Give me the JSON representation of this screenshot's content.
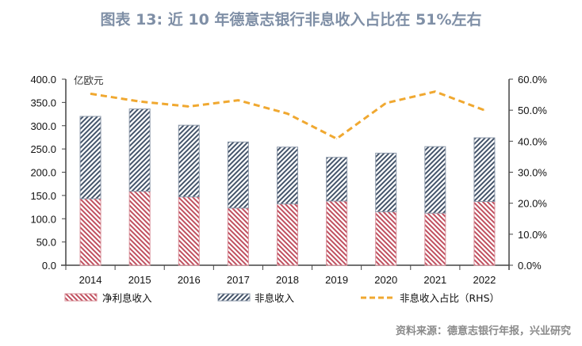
{
  "title": "图表 13: 近 10 年德意志银行非息收入占比在 51%左右",
  "source": "资料来源：德意志银行年报，兴业研究",
  "chart_data": {
    "type": "bar",
    "stacked": true,
    "title": "图表 13: 近 10 年德意志银行非息收入占比在 51%左右",
    "categories": [
      "2014",
      "2015",
      "2016",
      "2017",
      "2018",
      "2019",
      "2020",
      "2021",
      "2022"
    ],
    "y_unit_label": "亿欧元",
    "ylim": [
      0,
      400
    ],
    "y_ticks": [
      "0.0",
      "50.0",
      "100.0",
      "150.0",
      "200.0",
      "250.0",
      "300.0",
      "350.0",
      "400.0"
    ],
    "y2lim": [
      0,
      60
    ],
    "y2_ticks": [
      "0.0%",
      "10.0%",
      "20.0%",
      "30.0%",
      "40.0%",
      "50.0%",
      "60.0%"
    ],
    "grid": false,
    "legend_position": "bottom",
    "series": [
      {
        "name": "净利息收入",
        "type": "bar",
        "axis": "left",
        "color": "#c0505f",
        "pattern": "backslash-hatch",
        "values": [
          143,
          159,
          147,
          123,
          132,
          138,
          115,
          112,
          137
        ]
      },
      {
        "name": "非息收入",
        "type": "bar",
        "axis": "left",
        "color": "#44546a",
        "pattern": "slash-hatch",
        "values": [
          177,
          177,
          154,
          142,
          122,
          94,
          126,
          143,
          137
        ]
      },
      {
        "name": "非息收入占比（RHS）",
        "type": "line",
        "axis": "right",
        "color": "#f0a830",
        "dash": true,
        "values": [
          55.3,
          52.8,
          51.2,
          53.2,
          48.9,
          40.8,
          52.3,
          56.0,
          50.0
        ]
      }
    ]
  }
}
